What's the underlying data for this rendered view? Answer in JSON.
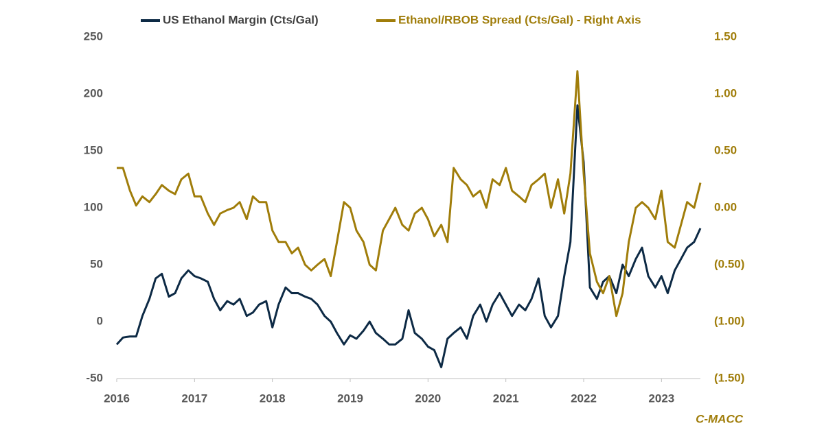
{
  "chart_data": {
    "type": "line",
    "source": "C-MACC",
    "x": [
      2016,
      2016.08,
      2016.17,
      2016.25,
      2016.33,
      2016.42,
      2016.5,
      2016.58,
      2016.67,
      2016.75,
      2016.83,
      2016.92,
      2017,
      2017.08,
      2017.17,
      2017.25,
      2017.33,
      2017.42,
      2017.5,
      2017.58,
      2017.67,
      2017.75,
      2017.83,
      2017.92,
      2018,
      2018.08,
      2018.17,
      2018.25,
      2018.33,
      2018.42,
      2018.5,
      2018.58,
      2018.67,
      2018.75,
      2018.83,
      2018.92,
      2019,
      2019.08,
      2019.17,
      2019.25,
      2019.33,
      2019.42,
      2019.5,
      2019.58,
      2019.67,
      2019.75,
      2019.83,
      2019.92,
      2020,
      2020.08,
      2020.17,
      2020.25,
      2020.33,
      2020.42,
      2020.5,
      2020.58,
      2020.67,
      2020.75,
      2020.83,
      2020.92,
      2021,
      2021.08,
      2021.17,
      2021.25,
      2021.33,
      2021.42,
      2021.5,
      2021.58,
      2021.67,
      2021.75,
      2021.83,
      2021.92,
      2022,
      2022.08,
      2022.17,
      2022.25,
      2022.33,
      2022.42,
      2022.5,
      2022.58,
      2022.67,
      2022.75,
      2022.83,
      2022.92,
      2023,
      2023.08,
      2023.17,
      2023.25,
      2023.33,
      2023.42,
      2023.5
    ],
    "series": [
      {
        "name": "US Ethanol Margin (Cts/Gal)",
        "color": "#0d2a45",
        "values": [
          -20,
          -14,
          -13,
          -13,
          5,
          20,
          38,
          42,
          22,
          25,
          38,
          45,
          40,
          38,
          35,
          20,
          10,
          18,
          15,
          20,
          5,
          8,
          15,
          18,
          -5,
          15,
          30,
          25,
          25,
          22,
          20,
          15,
          5,
          0,
          -10,
          -20,
          -12,
          -15,
          -8,
          0,
          -10,
          -15,
          -20,
          -20,
          -15,
          10,
          -10,
          -15,
          -22,
          -25,
          -40,
          -15,
          -10,
          -5,
          -15,
          5,
          15,
          0,
          15,
          25,
          15,
          5,
          15,
          10,
          20,
          38,
          5,
          -5,
          5,
          40,
          70,
          190,
          140,
          30,
          20,
          35,
          40,
          25,
          50,
          40,
          55,
          65,
          40,
          30,
          40,
          25,
          45,
          55,
          65,
          70,
          82
        ]
      },
      {
        "name": "Ethanol/RBOB Spread (Cts/Gal) - Right Axis",
        "color": "#a07d0a",
        "axis": "y2",
        "values": [
          0.35,
          0.35,
          0.15,
          0.02,
          0.1,
          0.05,
          0.12,
          0.2,
          0.15,
          0.12,
          0.25,
          0.3,
          0.1,
          0.1,
          -0.05,
          -0.15,
          -0.05,
          -0.02,
          0.0,
          0.05,
          -0.1,
          0.1,
          0.05,
          0.05,
          -0.2,
          -0.3,
          -0.3,
          -0.4,
          -0.35,
          -0.5,
          -0.55,
          -0.5,
          -0.45,
          -0.6,
          -0.3,
          0.05,
          0.0,
          -0.2,
          -0.3,
          -0.5,
          -0.55,
          -0.2,
          -0.1,
          0.0,
          -0.15,
          -0.2,
          -0.05,
          0.0,
          -0.1,
          -0.25,
          -0.15,
          -0.3,
          0.35,
          0.25,
          0.2,
          0.1,
          0.15,
          0.0,
          0.25,
          0.2,
          0.35,
          0.15,
          0.1,
          0.05,
          0.2,
          0.25,
          0.3,
          0.0,
          0.25,
          -0.05,
          0.3,
          1.2,
          0.3,
          -0.4,
          -0.65,
          -0.75,
          -0.6,
          -0.95,
          -0.75,
          -0.3,
          0.0,
          0.05,
          0.0,
          -0.1,
          0.15,
          -0.3,
          -0.35,
          -0.15,
          0.05,
          0.0,
          0.22
        ]
      }
    ],
    "xlim": [
      2016,
      2023.5
    ],
    "xticks": [
      2016,
      2017,
      2018,
      2019,
      2020,
      2021,
      2022,
      2023
    ],
    "ylim": [
      -50,
      250
    ],
    "yticks": [
      -50,
      0,
      50,
      100,
      150,
      200,
      250
    ],
    "y2lim": [
      -1.5,
      1.5
    ],
    "y2ticks": [
      {
        "value": -1.5,
        "label": "(1.50)"
      },
      {
        "value": -1,
        "label": "(1.00)"
      },
      {
        "value": -0.5,
        "label": "(0.50)"
      },
      {
        "value": 0,
        "label": "0.00"
      },
      {
        "value": 0.5,
        "label": "0.50"
      },
      {
        "value": 1,
        "label": "1.00"
      },
      {
        "value": 1.5,
        "label": "1.50"
      }
    ],
    "grid": false,
    "legend": "top"
  }
}
